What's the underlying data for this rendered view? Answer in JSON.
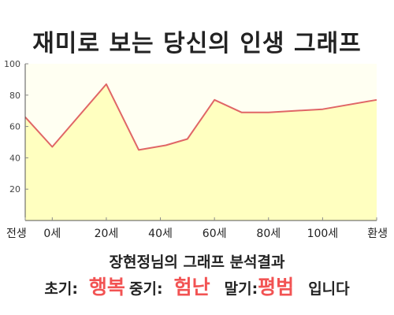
{
  "title": "재미로 보는 당신의 인생 그래프",
  "chart_data": {
    "type": "area",
    "x": [
      -10,
      0,
      20,
      32,
      42,
      50,
      60,
      70,
      80,
      100,
      120
    ],
    "values": [
      66,
      47,
      87,
      45,
      48,
      52,
      77,
      69,
      69,
      71,
      77
    ],
    "xticks": [
      {
        "x": -10,
        "label": "전생"
      },
      {
        "x": 0,
        "label": "0세"
      },
      {
        "x": 20,
        "label": "20세"
      },
      {
        "x": 40,
        "label": "40세"
      },
      {
        "x": 60,
        "label": "60세"
      },
      {
        "x": 80,
        "label": "80세"
      },
      {
        "x": 100,
        "label": "100세"
      },
      {
        "x": 120,
        "label": "환생"
      }
    ],
    "yticks": [
      20,
      40,
      60,
      80,
      100
    ],
    "ylim": [
      0,
      100
    ],
    "xlim": [
      -10,
      120
    ],
    "grid": false,
    "colors": {
      "line": "#e06666",
      "fill": "#ffffc0",
      "plot_bg": "#fffff2"
    }
  },
  "result": {
    "heading": "장현정님의 그래프 분석결과",
    "early_label": "초기:",
    "early_value": "행복",
    "mid_label": "중기:",
    "mid_value": "험난",
    "late_label": "말기:",
    "late_value": "평범",
    "suffix": "입니다"
  }
}
